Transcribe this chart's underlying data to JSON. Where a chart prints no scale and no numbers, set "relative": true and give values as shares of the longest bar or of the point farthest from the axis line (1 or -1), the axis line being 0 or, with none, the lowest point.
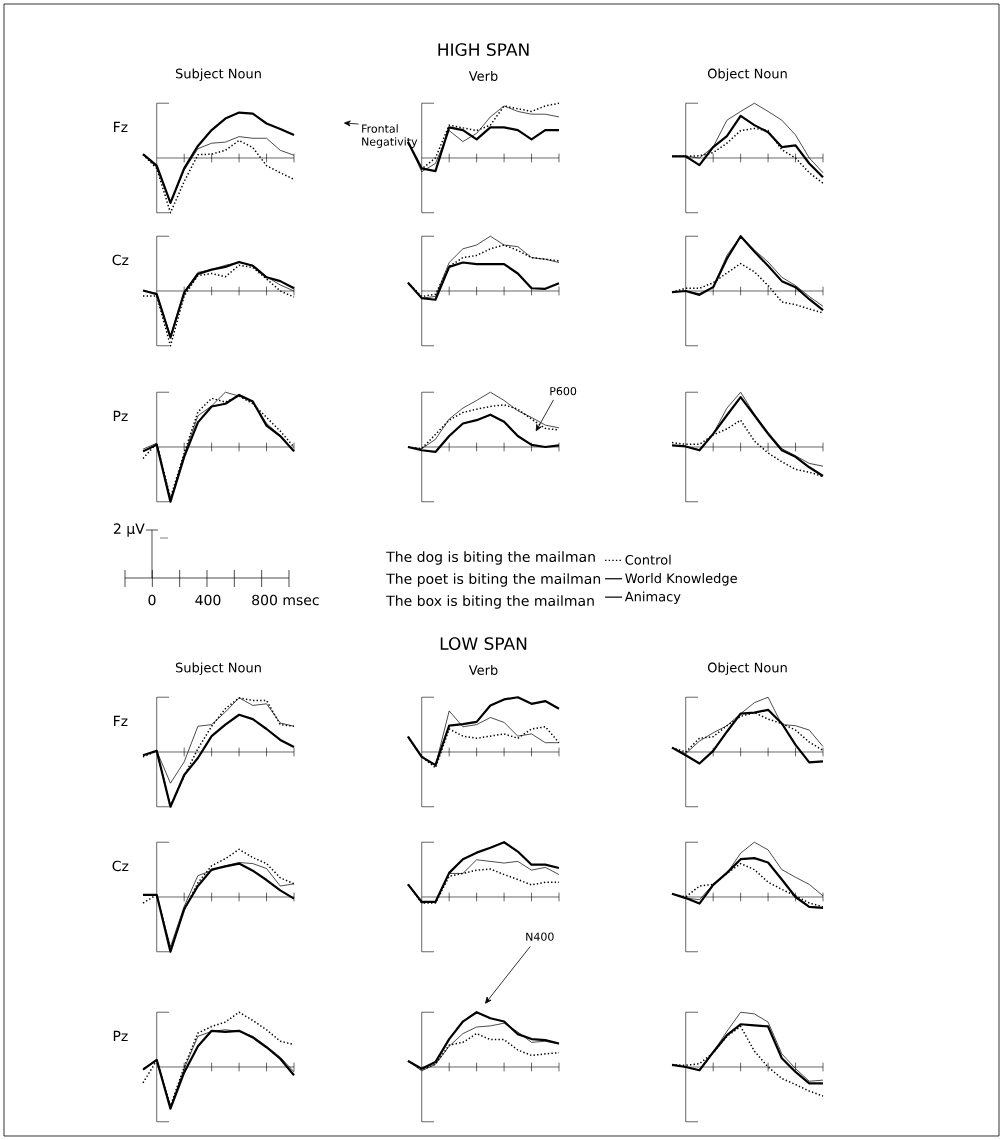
{
  "chart_data": [
    {
      "type": "line",
      "subtitle": "Subject Noun",
      "ylabel": "Fz",
      "relative": true,
      "annotations": [
        "Frontal Negativity"
      ],
      "categories": [
        null,
        null,
        null,
        null,
        null,
        null,
        null,
        null,
        null,
        null,
        null,
        null
      ],
      "series": [
        {
          "color": "#000000",
          "line_style": "dotted",
          "values": [
            0.06,
            -0.19,
            -1,
            -0.43,
            0.06,
            0.07,
            0.14,
            0.32,
            0.19,
            -0.14,
            -0.27,
            -0.39
          ]
        },
        {
          "color": "#000000",
          "line_style": "solid",
          "values": [
            0.07,
            -0.17,
            -0.82,
            -0.22,
            0.17,
            0.27,
            0.29,
            0.39,
            0.36,
            0.36,
            0.14,
            0.05
          ]
        },
        {
          "color": "#000000",
          "line_style": "solid",
          "values": [
            0.07,
            -0.14,
            -0.82,
            -0.19,
            0.22,
            0.51,
            0.72,
            0.83,
            0.81,
            0.63,
            0.53,
            0.42
          ]
        }
      ]
    },
    {
      "type": "line",
      "title": "HIGH SPAN",
      "subtitle": "Verb",
      "relative": true,
      "categories": [
        null,
        null,
        null,
        null,
        null,
        null,
        null,
        null,
        null,
        null,
        null,
        null
      ],
      "series": [
        {
          "color": "#000000",
          "line_style": "dotted",
          "values": [
            0.29,
            -0.2,
            0,
            0.6,
            0.55,
            0.5,
            0.6,
            0.95,
            0.9,
            0.85,
            0.95,
            1.0
          ]
        },
        {
          "color": "#000000",
          "line_style": "solid",
          "values": [
            0.29,
            -0.25,
            -0.1,
            0.5,
            0.3,
            0.45,
            0.75,
            0.95,
            0.85,
            0.8,
            0.8,
            0.75
          ]
        },
        {
          "color": "#000000",
          "line_style": "solid",
          "values": [
            0.29,
            -0.19,
            -0.24,
            0.56,
            0.51,
            0.34,
            0.56,
            0.56,
            0.51,
            0.34,
            0.51,
            0.51
          ]
        }
      ]
    },
    {
      "type": "line",
      "subtitle": "Object Noun",
      "relative": true,
      "categories": [
        null,
        null,
        null,
        null,
        null,
        null,
        null,
        null,
        null,
        null,
        null,
        null
      ],
      "series": [
        {
          "color": "#000000",
          "line_style": "dotted",
          "values": [
            0.03,
            0.03,
            0.04,
            0.1,
            0.27,
            0.5,
            0.54,
            0.5,
            0.15,
            0,
            -0.27,
            -0.46
          ]
        },
        {
          "color": "#000000",
          "line_style": "solid",
          "values": [
            0.03,
            0.03,
            0,
            0.2,
            0.69,
            0.85,
            1.0,
            0.85,
            0.69,
            0.42,
            0,
            -0.27
          ]
        },
        {
          "color": "#000000",
          "line_style": "solid",
          "values": [
            0.03,
            0.03,
            -0.13,
            0.2,
            0.4,
            0.77,
            0.6,
            0.47,
            0.2,
            0.23,
            -0.1,
            -0.35
          ]
        }
      ]
    },
    {
      "type": "line",
      "ylabel": "Cz",
      "relative": true,
      "categories": [
        null,
        null,
        null,
        null,
        null,
        null,
        null,
        null,
        null,
        null,
        null,
        null
      ],
      "series": [
        {
          "color": "#000000",
          "line_style": "dotted",
          "values": [
            -0.09,
            -0.09,
            -1,
            -0.09,
            0.28,
            0.32,
            0.26,
            0.47,
            0.43,
            0.22,
            0.0,
            -0.11
          ]
        },
        {
          "color": "#000000",
          "line_style": "solid",
          "values": [
            0.01,
            -0.04,
            -0.82,
            -0.02,
            0.34,
            0.39,
            0.47,
            0.52,
            0.47,
            0.26,
            0.11,
            0.0
          ]
        },
        {
          "color": "#000000",
          "line_style": "solid",
          "values": [
            0.01,
            -0.06,
            -0.85,
            -0.03,
            0.31,
            0.39,
            0.44,
            0.53,
            0.46,
            0.25,
            0.18,
            0.05
          ]
        }
      ]
    },
    {
      "type": "line",
      "relative": true,
      "categories": [
        null,
        null,
        null,
        null,
        null,
        null,
        null,
        null,
        null,
        null,
        null,
        null
      ],
      "series": [
        {
          "color": "#000000",
          "line_style": "dotted",
          "values": [
            0.15,
            -0.1,
            -0.06,
            0.45,
            0.61,
            0.65,
            0.77,
            0.84,
            0.74,
            0.61,
            0.58,
            0.55
          ]
        },
        {
          "color": "#000000",
          "line_style": "solid",
          "values": [
            0.15,
            -0.13,
            -0.1,
            0.52,
            0.77,
            0.84,
            1.0,
            0.84,
            0.81,
            0.61,
            0.58,
            0.52
          ]
        },
        {
          "color": "#000000",
          "line_style": "solid",
          "values": [
            0.15,
            -0.13,
            -0.16,
            0.44,
            0.52,
            0.49,
            0.49,
            0.49,
            0.32,
            0.05,
            0.04,
            0.14
          ]
        }
      ]
    },
    {
      "type": "line",
      "relative": true,
      "categories": [
        null,
        null,
        null,
        null,
        null,
        null,
        null,
        null,
        null,
        null,
        null,
        null
      ],
      "series": [
        {
          "color": "#000000",
          "line_style": "dotted",
          "values": [
            -0.02,
            0.05,
            0.05,
            0.15,
            0.33,
            0.5,
            0.35,
            0.1,
            -0.2,
            -0.25,
            -0.33,
            -0.4
          ]
        },
        {
          "color": "#000000",
          "line_style": "solid",
          "values": [
            -0.02,
            0,
            -0.05,
            0.07,
            0.65,
            1.0,
            0.75,
            0.53,
            0.25,
            0.1,
            -0.1,
            -0.28
          ]
        },
        {
          "color": "#000000",
          "line_style": "solid",
          "values": [
            -0.02,
            0,
            -0.07,
            0.07,
            0.59,
            1.0,
            0.72,
            0.46,
            0.18,
            0.07,
            -0.15,
            -0.35
          ]
        }
      ]
    },
    {
      "type": "line",
      "ylabel": "Pz",
      "relative": true,
      "categories": [
        null,
        null,
        null,
        null,
        null,
        null,
        null,
        null,
        null,
        null,
        null,
        null
      ],
      "series": [
        {
          "color": "#000000",
          "line_style": "dotted",
          "values": [
            -0.21,
            0.07,
            -0.93,
            -0.11,
            0.64,
            0.89,
            0.82,
            0.93,
            0.79,
            0.54,
            0.29,
            0.0
          ]
        },
        {
          "color": "#000000",
          "line_style": "solid",
          "values": [
            -0.04,
            0.07,
            -0.96,
            -0.14,
            0.57,
            0.75,
            1.0,
            0.93,
            0.82,
            0.43,
            0.21,
            -0.07
          ]
        },
        {
          "color": "#000000",
          "line_style": "solid",
          "values": [
            -0.08,
            0.04,
            -1,
            -0.18,
            0.45,
            0.74,
            0.79,
            0.95,
            0.83,
            0.39,
            0.2,
            -0.08
          ]
        }
      ]
    },
    {
      "type": "line",
      "relative": true,
      "legend": "bottom right",
      "annotations": [
        "P600"
      ],
      "categories": [
        null,
        null,
        null,
        null,
        null,
        null,
        null,
        null,
        null,
        null,
        null,
        null
      ],
      "series": [
        {
          "name": "Control",
          "color": "#000000",
          "line_style": "dotted",
          "values": [
            0,
            -0.03,
            0.23,
            0.49,
            0.63,
            0.69,
            0.74,
            0.77,
            0.69,
            0.51,
            0.34,
            0.31
          ]
        },
        {
          "name": "World Knowledge",
          "color": "#000000",
          "line_style": "solid",
          "values": [
            0,
            -0.03,
            0.14,
            0.51,
            0.71,
            0.85,
            1.0,
            0.85,
            0.66,
            0.54,
            0.4,
            0.35
          ]
        },
        {
          "name": "Animacy",
          "color": "#000000",
          "line_style": "solid",
          "values": [
            0,
            -0.06,
            -0.09,
            0.2,
            0.43,
            0.49,
            0.59,
            0.46,
            0.2,
            0.04,
            0,
            0.03
          ]
        }
      ]
    },
    {
      "type": "line",
      "relative": true,
      "categories": [
        null,
        null,
        null,
        null,
        null,
        null,
        null,
        null,
        null,
        null,
        null,
        null
      ],
      "series": [
        {
          "color": "#000000",
          "line_style": "dotted",
          "values": [
            0.08,
            0.05,
            0.05,
            0.22,
            0.33,
            0.49,
            0.11,
            -0.11,
            -0.27,
            -0.41,
            -0.46,
            -0.54
          ]
        },
        {
          "color": "#000000",
          "line_style": "solid",
          "values": [
            0.03,
            0.01,
            -0.05,
            0.24,
            0.71,
            1.0,
            0.6,
            0.27,
            -0.03,
            -0.16,
            -0.3,
            -0.35
          ]
        },
        {
          "color": "#000000",
          "line_style": "solid",
          "values": [
            0.03,
            0.01,
            -0.06,
            0.24,
            0.58,
            0.91,
            0.58,
            0.24,
            -0.06,
            -0.18,
            -0.37,
            -0.53
          ]
        }
      ]
    },
    {
      "type": "other",
      "annotations": [
        "2 µV",
        "0",
        "400",
        "800 msec",
        "The dog is biting the mailman",
        "The poet is biting the mailman",
        "The box is biting the mailman"
      ]
    },
    {
      "type": "line",
      "subtitle": "Subject Noun",
      "ylabel": "Fz",
      "relative": true,
      "categories": [
        null,
        null,
        null,
        null,
        null,
        null,
        null,
        null,
        null,
        null,
        null,
        null
      ],
      "series": [
        {
          "color": "#000000",
          "line_style": "dotted",
          "values": [
            -0.09,
            0.02,
            -0.99,
            -0.44,
            0.06,
            0.47,
            0.79,
            0.99,
            0.94,
            0.94,
            0.5,
            0.47
          ]
        },
        {
          "color": "#000000",
          "line_style": "solid",
          "values": [
            -0.06,
            0.02,
            -0.57,
            -0.18,
            0.47,
            0.5,
            0.73,
            0.99,
            0.85,
            0.88,
            0.53,
            0.47
          ]
        },
        {
          "color": "#000000",
          "line_style": "solid",
          "values": [
            -0.06,
            0.02,
            -1.0,
            -0.42,
            -0.11,
            0.29,
            0.5,
            0.68,
            0.6,
            0.42,
            0.22,
            0.09
          ]
        }
      ]
    },
    {
      "type": "line",
      "title": "LOW SPAN",
      "subtitle": "Verb",
      "relative": true,
      "categories": [
        null,
        null,
        null,
        null,
        null,
        null,
        null,
        null,
        null,
        null,
        null,
        null
      ],
      "series": [
        {
          "color": "#000000",
          "line_style": "dotted",
          "values": [
            0.28,
            -0.08,
            -0.29,
            0.42,
            0.29,
            0.25,
            0.29,
            0.33,
            0.25,
            0.42,
            0.46,
            0.17
          ]
        },
        {
          "color": "#000000",
          "line_style": "solid",
          "values": [
            0.28,
            -0.08,
            -0.25,
            0.75,
            0.46,
            0.5,
            0.63,
            0.54,
            0.29,
            0.33,
            0.17,
            0.17
          ]
        },
        {
          "color": "#000000",
          "line_style": "solid",
          "values": [
            0.28,
            -0.09,
            -0.24,
            0.48,
            0.51,
            0.55,
            0.85,
            0.96,
            1.0,
            0.88,
            0.93,
            0.79
          ]
        }
      ]
    },
    {
      "type": "line",
      "subtitle": "Object Noun",
      "relative": true,
      "categories": [
        null,
        null,
        null,
        null,
        null,
        null,
        null,
        null,
        null,
        null,
        null,
        null
      ],
      "series": [
        {
          "color": "#000000",
          "line_style": "dotted",
          "values": [
            0.08,
            0,
            0.25,
            0.28,
            0.48,
            0.65,
            0.72,
            0.6,
            0.52,
            0.4,
            0.18,
            0.03
          ]
        },
        {
          "color": "#000000",
          "line_style": "solid",
          "values": [
            0.08,
            -0.03,
            0.2,
            0.35,
            0.48,
            0.7,
            0.9,
            1.0,
            0.5,
            0.48,
            0.4,
            0.1
          ]
        },
        {
          "color": "#000000",
          "line_style": "solid",
          "values": [
            0.08,
            -0.06,
            -0.21,
            0.02,
            0.37,
            0.7,
            0.72,
            0.77,
            0.52,
            0.13,
            -0.19,
            -0.17
          ]
        }
      ]
    },
    {
      "type": "line",
      "ylabel": "Cz",
      "relative": true,
      "categories": [
        null,
        null,
        null,
        null,
        null,
        null,
        null,
        null,
        null,
        null,
        null,
        null
      ],
      "series": [
        {
          "color": "#000000",
          "line_style": "dotted",
          "values": [
            -0.11,
            0.04,
            -0.96,
            -0.24,
            0.26,
            0.57,
            0.7,
            0.87,
            0.72,
            0.61,
            0.35,
            0.24
          ]
        },
        {
          "color": "#000000",
          "line_style": "solid",
          "values": [
            0.04,
            0.04,
            -0.91,
            -0.17,
            0.39,
            0.48,
            0.57,
            0.63,
            0.61,
            0.52,
            0.2,
            0.24
          ]
        },
        {
          "color": "#000000",
          "line_style": "solid",
          "values": [
            0.04,
            0.04,
            -1.0,
            -0.22,
            0.2,
            0.5,
            0.56,
            0.61,
            0.48,
            0.31,
            0.12,
            -0.03
          ]
        }
      ]
    },
    {
      "type": "line",
      "relative": true,
      "categories": [
        null,
        null,
        null,
        null,
        null,
        null,
        null,
        null,
        null,
        null,
        null,
        null
      ],
      "series": [
        {
          "color": "#000000",
          "line_style": "dotted",
          "values": [
            0.23,
            -0.11,
            -0.11,
            0.38,
            0.43,
            0.49,
            0.51,
            0.41,
            0.32,
            0.22,
            0.27,
            0.27
          ]
        },
        {
          "color": "#000000",
          "line_style": "solid",
          "values": [
            0.23,
            -0.11,
            -0.08,
            0.43,
            0.43,
            0.68,
            0.65,
            0.62,
            0.65,
            0.49,
            0.54,
            0.41
          ]
        },
        {
          "color": "#000000",
          "line_style": "solid",
          "values": [
            0.23,
            -0.09,
            -0.09,
            0.44,
            0.69,
            0.81,
            0.9,
            1.0,
            0.83,
            0.59,
            0.59,
            0.53
          ]
        }
      ]
    },
    {
      "type": "line",
      "relative": true,
      "categories": [
        null,
        null,
        null,
        null,
        null,
        null,
        null,
        null,
        null,
        null,
        null,
        null
      ],
      "series": [
        {
          "color": "#000000",
          "line_style": "dotted",
          "values": [
            0.06,
            0,
            0.2,
            0.23,
            0.43,
            0.61,
            0.5,
            0.27,
            0.14,
            0.02,
            -0.11,
            -0.18
          ]
        },
        {
          "color": "#000000",
          "line_style": "solid",
          "values": [
            0.06,
            -0.02,
            -0.05,
            0.23,
            0.43,
            0.8,
            1.0,
            0.86,
            0.5,
            0.36,
            0.23,
            0.02
          ]
        },
        {
          "color": "#000000",
          "line_style": "solid",
          "values": [
            0.06,
            -0.02,
            -0.12,
            0.22,
            0.44,
            0.69,
            0.71,
            0.63,
            0.32,
            0,
            -0.18,
            -0.2
          ]
        }
      ]
    },
    {
      "type": "line",
      "ylabel": "Pz",
      "relative": true,
      "categories": [
        null,
        null,
        null,
        null,
        null,
        null,
        null,
        null,
        null,
        null,
        null,
        null
      ],
      "series": [
        {
          "color": "#000000",
          "line_style": "dotted",
          "values": [
            -0.29,
            0.12,
            -0.71,
            0,
            0.62,
            0.74,
            0.82,
            1.0,
            0.85,
            0.68,
            0.47,
            0.41
          ]
        },
        {
          "color": "#000000",
          "line_style": "solid",
          "values": [
            -0.03,
            0.12,
            -0.74,
            -0.03,
            0.56,
            0.65,
            0.68,
            0.65,
            0.56,
            0.38,
            0.18,
            -0.09
          ]
        },
        {
          "color": "#000000",
          "line_style": "solid",
          "values": [
            -0.05,
            0.13,
            -0.76,
            -0.1,
            0.38,
            0.66,
            0.64,
            0.66,
            0.54,
            0.36,
            0.15,
            -0.15
          ]
        }
      ]
    },
    {
      "type": "line",
      "relative": true,
      "annotations": [
        "N400"
      ],
      "categories": [
        null,
        null,
        null,
        null,
        null,
        null,
        null,
        null,
        null,
        null,
        null,
        null
      ],
      "series": [
        {
          "color": "#000000",
          "line_style": "dotted",
          "values": [
            0.11,
            -0.05,
            0.05,
            0.4,
            0.45,
            0.61,
            0.5,
            0.5,
            0.31,
            0.21,
            0.24,
            0.26
          ]
        },
        {
          "color": "#000000",
          "line_style": "solid",
          "values": [
            0.11,
            -0.07,
            0.05,
            0.38,
            0.61,
            0.73,
            0.75,
            0.8,
            0.64,
            0.45,
            0.47,
            0.42
          ]
        },
        {
          "color": "#000000",
          "line_style": "solid",
          "values": [
            0.11,
            -0.03,
            0.09,
            0.51,
            0.83,
            1.0,
            0.89,
            0.83,
            0.6,
            0.51,
            0.49,
            0.43
          ]
        }
      ]
    },
    {
      "type": "line",
      "relative": true,
      "categories": [
        null,
        null,
        null,
        null,
        null,
        null,
        null,
        null,
        null,
        null,
        null,
        null
      ],
      "series": [
        {
          "color": "#000000",
          "line_style": "dotted",
          "values": [
            0.04,
            0.03,
            0.06,
            0.26,
            0.56,
            0.74,
            0.29,
            0,
            -0.21,
            -0.32,
            -0.44,
            -0.53
          ]
        },
        {
          "color": "#000000",
          "line_style": "solid",
          "values": [
            0.04,
            0,
            -0.06,
            0.27,
            0.65,
            1.0,
            0.97,
            0.82,
            0.24,
            -0.03,
            -0.26,
            -0.24
          ]
        },
        {
          "color": "#000000",
          "line_style": "solid",
          "values": [
            0.04,
            0,
            -0.06,
            0.27,
            0.58,
            0.78,
            0.76,
            0.74,
            0.16,
            -0.09,
            -0.3,
            -0.3
          ]
        }
      ]
    }
  ]
}
